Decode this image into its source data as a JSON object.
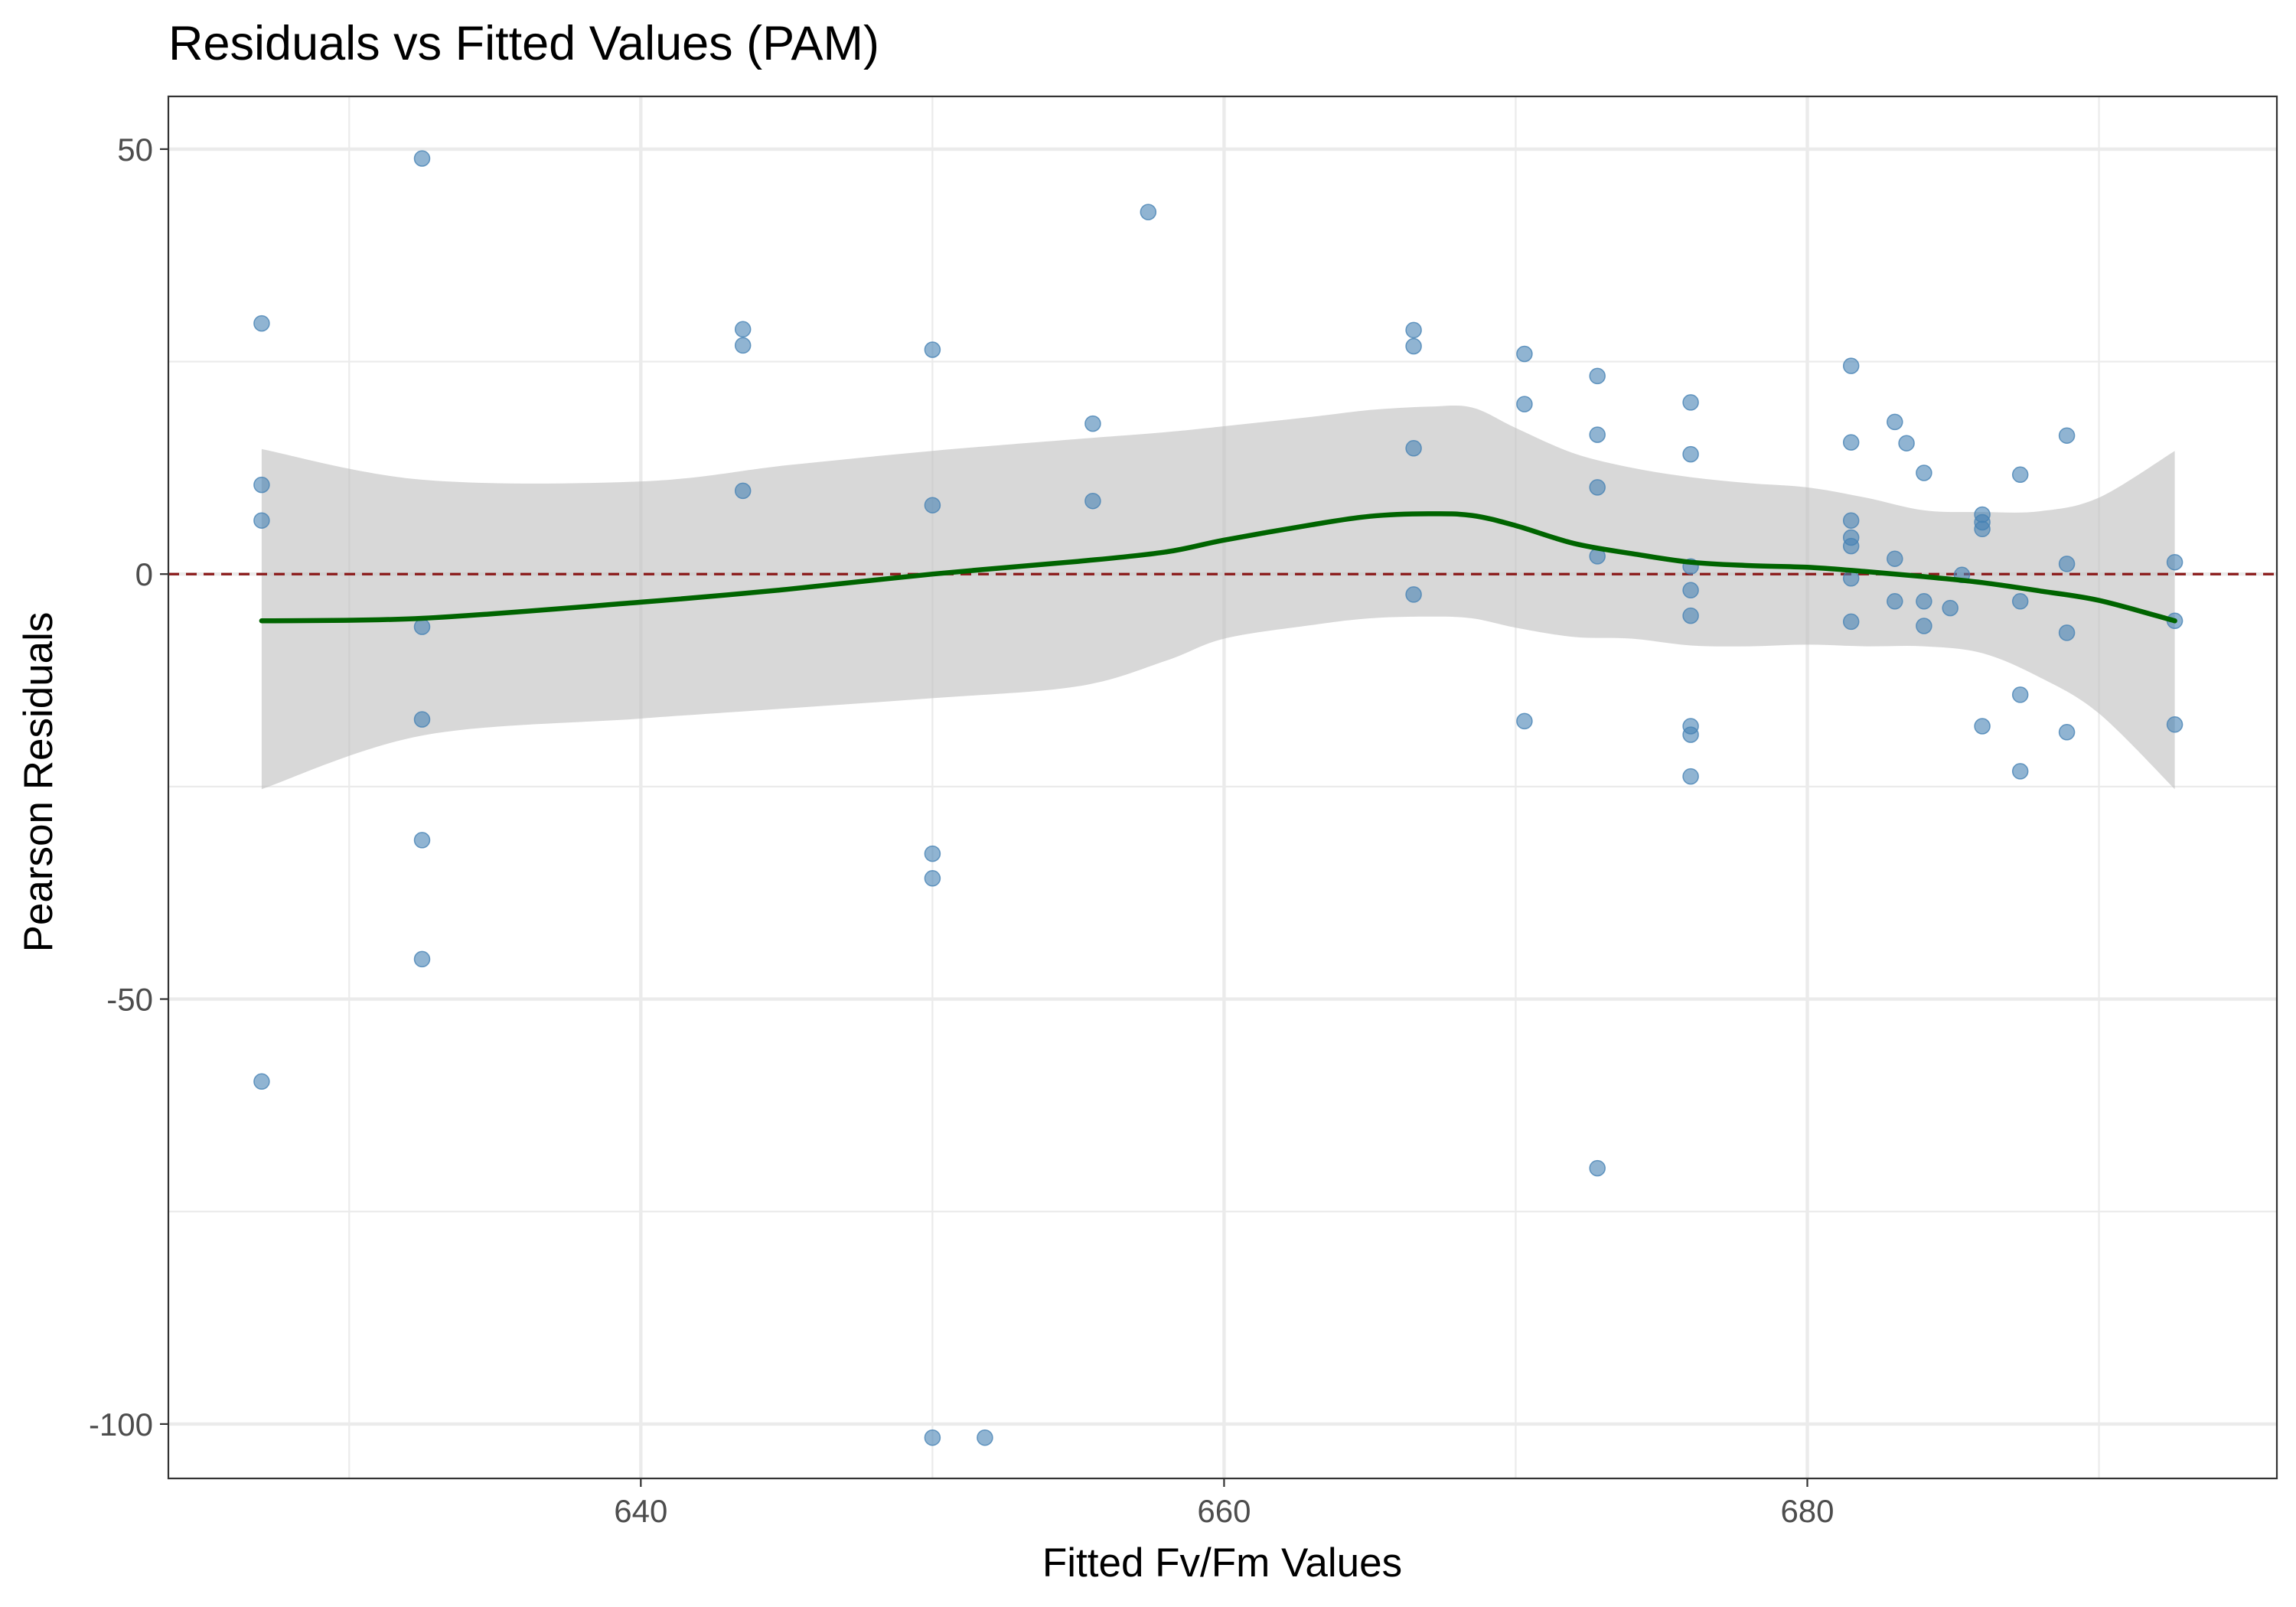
{
  "chart_data": {
    "type": "scatter",
    "title": "Residuals vs Fitted Values (PAM)",
    "xlabel": "Fitted Fv/Fm Values",
    "ylabel": "Pearson Residuals",
    "xlim": [
      623.8,
      696.1
    ],
    "ylim": [
      -106.4,
      56.2
    ],
    "x_ticks": [
      640,
      660,
      680
    ],
    "x_tick_labels": [
      "640",
      "660",
      "680"
    ],
    "y_ticks": [
      50,
      0,
      -50,
      -100
    ],
    "y_tick_labels": [
      "50",
      "0",
      "-50",
      "-100"
    ],
    "grid": true,
    "legend": "none",
    "colors": {
      "points": "#4682b4",
      "smooth": "#006400",
      "band": "#bebebe",
      "reference": "#8b1a1a",
      "grid": "#ebebeb",
      "panel_border": "#333333"
    },
    "reference_line": {
      "y": 0,
      "style": "dashed"
    },
    "series": [
      {
        "type": "points",
        "x": [
          627,
          627,
          627,
          627,
          632.5,
          632.5,
          632.5,
          632.5,
          632.5,
          643.5,
          643.5,
          643.5,
          650,
          650,
          650,
          650,
          650,
          651.8,
          655.5,
          655.5,
          657.4,
          666.5,
          666.5,
          666.5,
          666.5,
          670.3,
          670.3,
          670.3,
          672.8,
          672.8,
          672.8,
          672.8,
          672.8,
          676,
          676,
          676,
          676,
          676,
          676,
          676,
          676,
          681.5,
          681.5,
          681.5,
          681.5,
          681.5,
          681.5,
          681.5,
          683,
          683,
          683,
          683.4,
          684,
          684,
          684,
          684.9,
          685.3,
          686,
          686,
          686,
          686,
          687.3,
          687.3,
          687.3,
          687.3,
          688.9,
          688.9,
          688.9,
          688.9,
          692.6,
          692.6,
          692.6
        ],
        "y": [
          29.5,
          10.5,
          6.3,
          -59.7,
          48.9,
          -6.2,
          -17.1,
          -31.3,
          -45.3,
          28.8,
          26.9,
          9.8,
          26.4,
          8.1,
          -32.9,
          -35.8,
          -101.6,
          -101.6,
          17.7,
          8.6,
          42.6,
          28.7,
          26.8,
          14.8,
          -2.4,
          25.9,
          20.0,
          -17.3,
          23.3,
          16.4,
          10.2,
          2.1,
          -69.9,
          20.2,
          14.1,
          0.9,
          -1.9,
          -4.9,
          -18.9,
          -23.8,
          -17.9,
          24.5,
          15.5,
          6.3,
          4.3,
          3.3,
          -0.5,
          -5.6,
          17.9,
          1.8,
          -3.2,
          15.4,
          11.9,
          -3.2,
          -6.1,
          -4.0,
          -0.1,
          7.0,
          6.1,
          5.3,
          -17.9,
          11.7,
          -3.2,
          -14.2,
          -23.2,
          16.3,
          1.2,
          -6.9,
          -18.6,
          1.4,
          -5.5,
          -17.7
        ]
      },
      {
        "type": "smooth",
        "x": [
          627,
          632.5,
          640,
          645,
          650,
          655,
          658,
          660,
          663,
          665,
          667,
          668.5,
          670,
          672,
          674,
          676,
          678,
          680,
          682,
          684,
          686,
          688,
          690,
          692.6
        ],
        "y": [
          -5.5,
          -5.2,
          -3.3,
          -1.8,
          0,
          1.5,
          2.6,
          4.0,
          5.8,
          6.8,
          7.1,
          6.9,
          5.7,
          3.6,
          2.4,
          1.4,
          1.0,
          0.8,
          0.3,
          -0.3,
          -1.0,
          -2.0,
          -3.1,
          -5.5
        ],
        "upper": [
          14.7,
          11.1,
          10.9,
          12.8,
          14.5,
          15.9,
          16.7,
          17.4,
          18.5,
          19.3,
          19.7,
          19.6,
          17.2,
          14.2,
          12.5,
          11.4,
          10.7,
          10.2,
          9.0,
          7.5,
          7.3,
          7.4,
          9.0,
          14.5
        ],
        "lower": [
          -25.3,
          -19.0,
          -17.0,
          -15.8,
          -14.6,
          -13.2,
          -10.2,
          -7.6,
          -6.0,
          -5.2,
          -5.0,
          -5.2,
          -6.3,
          -7.4,
          -7.6,
          -8.4,
          -8.5,
          -8.3,
          -8.5,
          -8.5,
          -9.3,
          -12.2,
          -16.4,
          -25.3
        ]
      }
    ]
  }
}
